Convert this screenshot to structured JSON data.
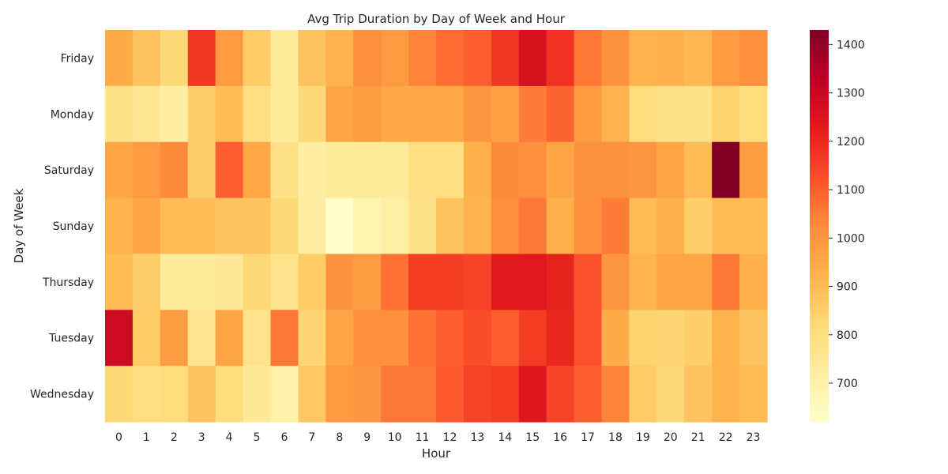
{
  "chart_data": {
    "type": "heatmap",
    "title": "Avg Trip Duration by Day of Week and Hour",
    "xlabel": "Hour",
    "ylabel": "Day of Week",
    "x": [
      "0",
      "1",
      "2",
      "3",
      "4",
      "5",
      "6",
      "7",
      "8",
      "9",
      "10",
      "11",
      "12",
      "13",
      "14",
      "15",
      "16",
      "17",
      "18",
      "19",
      "20",
      "21",
      "22",
      "23"
    ],
    "y": [
      "Friday",
      "Monday",
      "Saturday",
      "Sunday",
      "Thursday",
      "Tuesday",
      "Wednesday"
    ],
    "values": [
      [
        940,
        880,
        820,
        1170,
        990,
        860,
        730,
        880,
        920,
        1020,
        990,
        1040,
        1080,
        1100,
        1170,
        1260,
        1180,
        1060,
        1010,
        920,
        930,
        910,
        990,
        1020
      ],
      [
        780,
        750,
        720,
        850,
        900,
        790,
        730,
        820,
        960,
        980,
        950,
        950,
        950,
        1000,
        970,
        1050,
        1090,
        990,
        920,
        800,
        780,
        780,
        840,
        800
      ],
      [
        960,
        990,
        1030,
        850,
        1100,
        950,
        780,
        720,
        730,
        730,
        730,
        790,
        790,
        930,
        1030,
        1020,
        960,
        1010,
        1010,
        1000,
        960,
        900,
        1430,
        980
      ],
      [
        920,
        960,
        900,
        900,
        880,
        880,
        820,
        720,
        620,
        680,
        710,
        780,
        880,
        920,
        1020,
        1060,
        930,
        1020,
        1050,
        900,
        930,
        850,
        900,
        900
      ],
      [
        900,
        850,
        730,
        730,
        740,
        820,
        770,
        860,
        1010,
        980,
        1070,
        1160,
        1160,
        1150,
        1230,
        1230,
        1210,
        1120,
        1000,
        920,
        960,
        960,
        1060,
        930
      ],
      [
        1290,
        860,
        980,
        760,
        960,
        770,
        1060,
        830,
        960,
        1020,
        1020,
        1070,
        1100,
        1130,
        1100,
        1160,
        1200,
        1120,
        940,
        840,
        830,
        850,
        920,
        880
      ],
      [
        820,
        790,
        800,
        880,
        800,
        740,
        700,
        870,
        990,
        1000,
        1060,
        1060,
        1110,
        1150,
        1160,
        1240,
        1150,
        1100,
        1040,
        860,
        820,
        880,
        920,
        900
      ]
    ],
    "colorbar": {
      "vmin": 620,
      "vmax": 1430,
      "ticks": [
        700,
        800,
        900,
        1000,
        1100,
        1200,
        1300,
        1400
      ],
      "colormap": "YlOrRd"
    },
    "grid": false
  }
}
